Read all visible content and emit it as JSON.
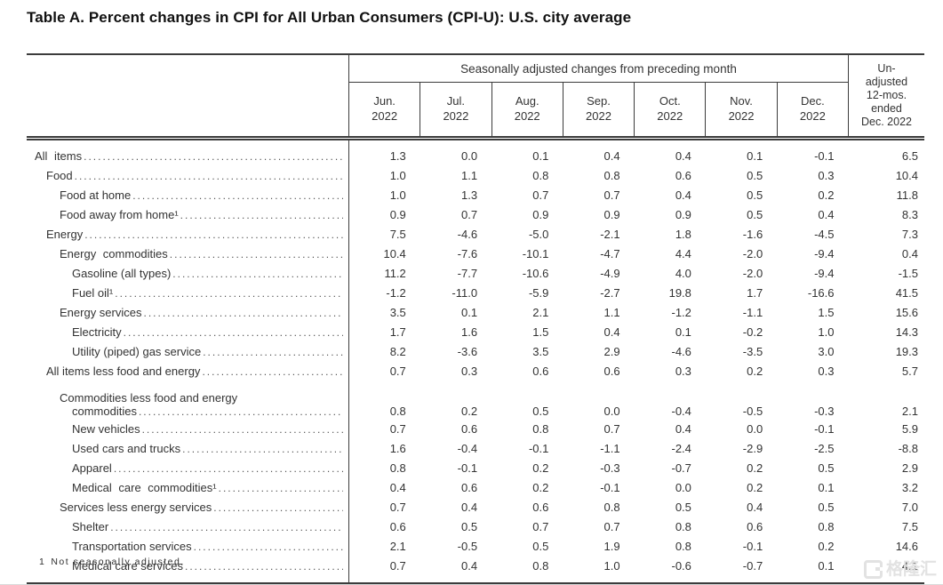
{
  "title": "Table A. Percent changes in CPI for All Urban Consumers (CPI-U): U.S. city average",
  "table": {
    "group_header": "Seasonally adjusted changes from preceding month",
    "columns": [
      "Jun.\n2022",
      "Jul.\n2022",
      "Aug.\n2022",
      "Sep.\n2022",
      "Oct.\n2022",
      "Nov.\n2022",
      "Dec.\n2022"
    ],
    "unadjusted_header": "Un-\nadjusted\n12-mos.\nended\nDec. 2022",
    "rows": [
      {
        "label": "All items",
        "indent": 0,
        "spaced": true,
        "values": [
          "1.3",
          "0.0",
          "0.1",
          "0.4",
          "0.4",
          "0.1",
          "-0.1",
          "6.5"
        ]
      },
      {
        "label": "Food",
        "indent": 1,
        "values": [
          "1.0",
          "1.1",
          "0.8",
          "0.8",
          "0.6",
          "0.5",
          "0.3",
          "10.4"
        ]
      },
      {
        "label": "Food at home",
        "indent": 2,
        "values": [
          "1.0",
          "1.3",
          "0.7",
          "0.7",
          "0.4",
          "0.5",
          "0.2",
          "11.8"
        ]
      },
      {
        "label": "Food away from home¹",
        "indent": 2,
        "values": [
          "0.9",
          "0.7",
          "0.9",
          "0.9",
          "0.9",
          "0.5",
          "0.4",
          "8.3"
        ]
      },
      {
        "label": "Energy",
        "indent": 1,
        "values": [
          "7.5",
          "-4.6",
          "-5.0",
          "-2.1",
          "1.8",
          "-1.6",
          "-4.5",
          "7.3"
        ]
      },
      {
        "label": "Energy commodities",
        "indent": 2,
        "spaced": true,
        "values": [
          "10.4",
          "-7.6",
          "-10.1",
          "-4.7",
          "4.4",
          "-2.0",
          "-9.4",
          "0.4"
        ]
      },
      {
        "label": "Gasoline (all types)",
        "indent": 3,
        "values": [
          "11.2",
          "-7.7",
          "-10.6",
          "-4.9",
          "4.0",
          "-2.0",
          "-9.4",
          "-1.5"
        ]
      },
      {
        "label": "Fuel oil¹",
        "indent": 3,
        "values": [
          "-1.2",
          "-11.0",
          "-5.9",
          "-2.7",
          "19.8",
          "1.7",
          "-16.6",
          "41.5"
        ]
      },
      {
        "label": "Energy services",
        "indent": 2,
        "values": [
          "3.5",
          "0.1",
          "2.1",
          "1.1",
          "-1.2",
          "-1.1",
          "1.5",
          "15.6"
        ]
      },
      {
        "label": "Electricity",
        "indent": 3,
        "values": [
          "1.7",
          "1.6",
          "1.5",
          "0.4",
          "0.1",
          "-0.2",
          "1.0",
          "14.3"
        ]
      },
      {
        "label": "Utility (piped) gas service",
        "indent": 3,
        "values": [
          "8.2",
          "-3.6",
          "3.5",
          "2.9",
          "-4.6",
          "-3.5",
          "3.0",
          "19.3"
        ]
      },
      {
        "label": "All items less food and energy",
        "indent": 1,
        "values": [
          "0.7",
          "0.3",
          "0.6",
          "0.6",
          "0.3",
          "0.2",
          "0.3",
          "5.7"
        ]
      },
      {
        "label": "Commodities less food and energy",
        "label_cont": "commodities",
        "indent": 2,
        "values": [
          "0.8",
          "0.2",
          "0.5",
          "0.0",
          "-0.4",
          "-0.5",
          "-0.3",
          "2.1"
        ]
      },
      {
        "label": "New vehicles",
        "indent": 3,
        "values": [
          "0.7",
          "0.6",
          "0.8",
          "0.7",
          "0.4",
          "0.0",
          "-0.1",
          "5.9"
        ]
      },
      {
        "label": "Used cars and trucks",
        "indent": 3,
        "values": [
          "1.6",
          "-0.4",
          "-0.1",
          "-1.1",
          "-2.4",
          "-2.9",
          "-2.5",
          "-8.8"
        ]
      },
      {
        "label": "Apparel",
        "indent": 3,
        "values": [
          "0.8",
          "-0.1",
          "0.2",
          "-0.3",
          "-0.7",
          "0.2",
          "0.5",
          "2.9"
        ]
      },
      {
        "label": "Medical care commodities¹",
        "indent": 3,
        "spaced": true,
        "values": [
          "0.4",
          "0.6",
          "0.2",
          "-0.1",
          "0.0",
          "0.2",
          "0.1",
          "3.2"
        ]
      },
      {
        "label": "Services less energy services",
        "indent": 2,
        "values": [
          "0.7",
          "0.4",
          "0.6",
          "0.8",
          "0.5",
          "0.4",
          "0.5",
          "7.0"
        ]
      },
      {
        "label": "Shelter",
        "indent": 3,
        "values": [
          "0.6",
          "0.5",
          "0.7",
          "0.7",
          "0.8",
          "0.6",
          "0.8",
          "7.5"
        ]
      },
      {
        "label": "Transportation services",
        "indent": 3,
        "values": [
          "2.1",
          "-0.5",
          "0.5",
          "1.9",
          "0.8",
          "-0.1",
          "0.2",
          "14.6"
        ]
      },
      {
        "label": "Medical care services",
        "indent": 3,
        "values": [
          "0.7",
          "0.4",
          "0.8",
          "1.0",
          "-0.6",
          "-0.7",
          "0.1",
          "4.1"
        ]
      }
    ]
  },
  "footnote": {
    "marker": "1",
    "text": "Not seasonally adjusted."
  },
  "watermark": {
    "text": "格隆汇"
  }
}
